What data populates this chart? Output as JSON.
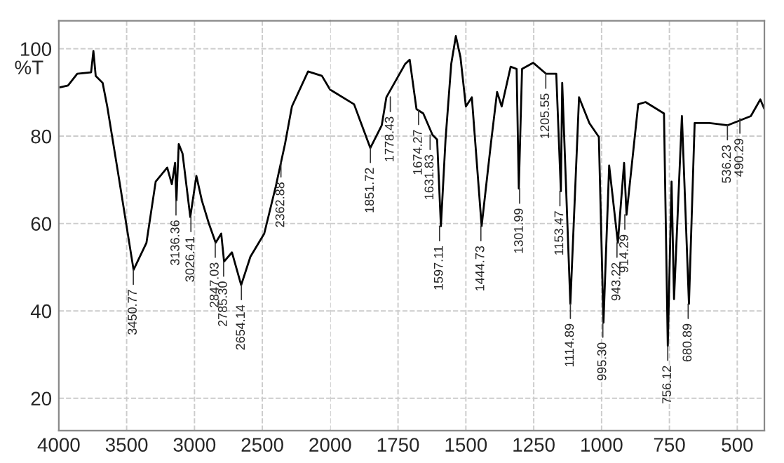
{
  "chart_data": [
    {
      "type": "line",
      "ylabel": "%T",
      "xlim": [
        4000,
        2000
      ],
      "xticks": [
        4000,
        3500,
        3000,
        2500
      ],
      "ylim": [
        12.6,
        106.4
      ],
      "yticks": [
        20,
        40,
        60,
        80,
        100
      ],
      "grid": true,
      "series": [
        {
          "color": "#000000",
          "x": [
            4000,
            3932,
            3864,
            3762,
            3745,
            3728,
            3677,
            3643,
            3558,
            3449,
            3354,
            3286,
            3201,
            3167,
            3143,
            3133,
            3116,
            3088,
            3031,
            2986,
            2946,
            2895,
            2844,
            2803,
            2782,
            2724,
            2656,
            2588,
            2486,
            2401,
            2333,
            2282,
            2163,
            2061,
            2000
          ],
          "values": [
            91.1,
            91.6,
            94.3,
            94.6,
            99.5,
            93.8,
            92.2,
            86.8,
            70.6,
            49.4,
            55.6,
            69.6,
            72.8,
            69.0,
            73.9,
            65.3,
            78.2,
            76.0,
            61.5,
            70.9,
            65.3,
            60.1,
            55.6,
            57.7,
            51.3,
            53.4,
            45.9,
            52.4,
            57.7,
            68.5,
            78.2,
            86.8,
            94.8,
            93.8,
            90.6
          ]
        }
      ],
      "annotations": [
        {
          "text": "3450.77",
          "x": 3450.77,
          "y": 49.4
        },
        {
          "text": "3136.36",
          "x": 3136.36,
          "y": 65.3
        },
        {
          "text": "3026.41",
          "x": 3026.41,
          "y": 61.5
        },
        {
          "text": "2847.03",
          "x": 2847.03,
          "y": 55.6
        },
        {
          "text": "2785.30",
          "x": 2785.3,
          "y": 51.3
        },
        {
          "text": "2654.14",
          "x": 2654.14,
          "y": 45.9
        },
        {
          "text": "2362.88",
          "x": 2362.88,
          "y": 74.0
        }
      ]
    },
    {
      "type": "line",
      "tick_labels": "x",
      "xlim": [
        2000,
        400
      ],
      "xticks": [
        2000,
        1750,
        1500,
        1250,
        1000,
        750,
        500
      ],
      "ylim": [
        12.6,
        106.4
      ],
      "yticks": [
        20,
        40,
        60,
        80,
        100
      ],
      "grid": true,
      "series": [
        {
          "color": "#000000",
          "x": [
            2000,
            1996,
            1912,
            1852,
            1810,
            1793,
            1724,
            1707,
            1682,
            1657,
            1623,
            1606,
            1592,
            1575,
            1554,
            1537,
            1520,
            1500,
            1478,
            1442,
            1408,
            1385,
            1368,
            1335,
            1313,
            1305,
            1293,
            1252,
            1205,
            1167,
            1150,
            1145,
            1115,
            1083,
            1045,
            1010,
            993,
            972,
            940,
            917,
            908,
            865,
            838,
            770,
            756,
            742,
            733,
            704,
            678,
            657,
            603,
            535,
            450,
            415,
            400
          ],
          "values": [
            90.6,
            90.5,
            87.3,
            77.3,
            82.5,
            88.9,
            96.5,
            97.5,
            86.2,
            85.2,
            80.3,
            79.2,
            59.4,
            79.2,
            96.5,
            102.9,
            98.1,
            86.8,
            88.9,
            59.4,
            78.2,
            90.1,
            86.8,
            95.9,
            95.4,
            68.0,
            95.4,
            96.8,
            94.3,
            94.3,
            67.4,
            92.2,
            41.6,
            88.9,
            83.0,
            79.8,
            37.3,
            73.3,
            55.6,
            73.9,
            62.0,
            87.3,
            87.8,
            85.2,
            32.0,
            69.6,
            42.7,
            84.6,
            41.6,
            83.0,
            83.0,
            82.5,
            84.6,
            88.4,
            86.2
          ]
        }
      ],
      "annotations": [
        {
          "text": "1851.72",
          "x": 1851.72,
          "y": 77.3
        },
        {
          "text": "1778.43",
          "x": 1778.43,
          "y": 89.0
        },
        {
          "text": "1674.27",
          "x": 1674.27,
          "y": 86.0
        },
        {
          "text": "1631.83",
          "x": 1631.83,
          "y": 80.3
        },
        {
          "text": "1597.11",
          "x": 1597.11,
          "y": 59.4
        },
        {
          "text": "1444.73",
          "x": 1444.73,
          "y": 59.4
        },
        {
          "text": "1301.99",
          "x": 1301.99,
          "y": 68.0
        },
        {
          "text": "1205.55",
          "x": 1205.55,
          "y": 94.3
        },
        {
          "text": "1153.47",
          "x": 1153.47,
          "y": 67.4
        },
        {
          "text": "1114.89",
          "x": 1114.89,
          "y": 41.6
        },
        {
          "text": "995.30",
          "x": 995.3,
          "y": 37.3
        },
        {
          "text": "943.22",
          "x": 943.22,
          "y": 55.6
        },
        {
          "text": "914.29",
          "x": 914.29,
          "y": 62.0
        },
        {
          "text": "756.12",
          "x": 756.12,
          "y": 32.0
        },
        {
          "text": "680.89",
          "x": 680.89,
          "y": 41.6
        },
        {
          "text": "536.23",
          "x": 536.23,
          "y": 82.5
        },
        {
          "text": "490.29",
          "x": 490.29,
          "y": 84.0
        }
      ]
    }
  ]
}
